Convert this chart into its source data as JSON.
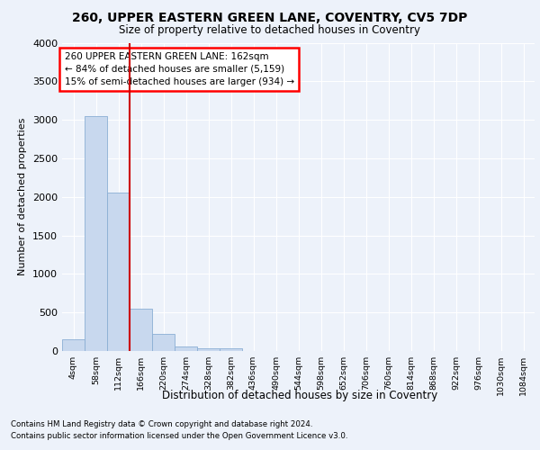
{
  "title_line1": "260, UPPER EASTERN GREEN LANE, COVENTRY, CV5 7DP",
  "title_line2": "Size of property relative to detached houses in Coventry",
  "xlabel": "Distribution of detached houses by size in Coventry",
  "ylabel": "Number of detached properties",
  "bin_labels": [
    "4sqm",
    "58sqm",
    "112sqm",
    "166sqm",
    "220sqm",
    "274sqm",
    "328sqm",
    "382sqm",
    "436sqm",
    "490sqm",
    "544sqm",
    "598sqm",
    "652sqm",
    "706sqm",
    "760sqm",
    "814sqm",
    "868sqm",
    "922sqm",
    "976sqm",
    "1030sqm",
    "1084sqm"
  ],
  "bar_heights": [
    150,
    3050,
    2050,
    550,
    225,
    60,
    35,
    30,
    0,
    0,
    0,
    0,
    0,
    0,
    0,
    0,
    0,
    0,
    0,
    0,
    0
  ],
  "bar_color": "#c8d8ee",
  "bar_edge_color": "#8aafd4",
  "vline_color": "#cc0000",
  "ylim": [
    0,
    4000
  ],
  "yticks": [
    0,
    500,
    1000,
    1500,
    2000,
    2500,
    3000,
    3500,
    4000
  ],
  "annotation_line1": "260 UPPER EASTERN GREEN LANE: 162sqm",
  "annotation_line2": "← 84% of detached houses are smaller (5,159)",
  "annotation_line3": "15% of semi-detached houses are larger (934) →",
  "footer_line1": "Contains HM Land Registry data © Crown copyright and database right 2024.",
  "footer_line2": "Contains public sector information licensed under the Open Government Licence v3.0.",
  "background_color": "#edf2fa",
  "plot_background": "#edf2fa",
  "grid_color": "#ffffff"
}
